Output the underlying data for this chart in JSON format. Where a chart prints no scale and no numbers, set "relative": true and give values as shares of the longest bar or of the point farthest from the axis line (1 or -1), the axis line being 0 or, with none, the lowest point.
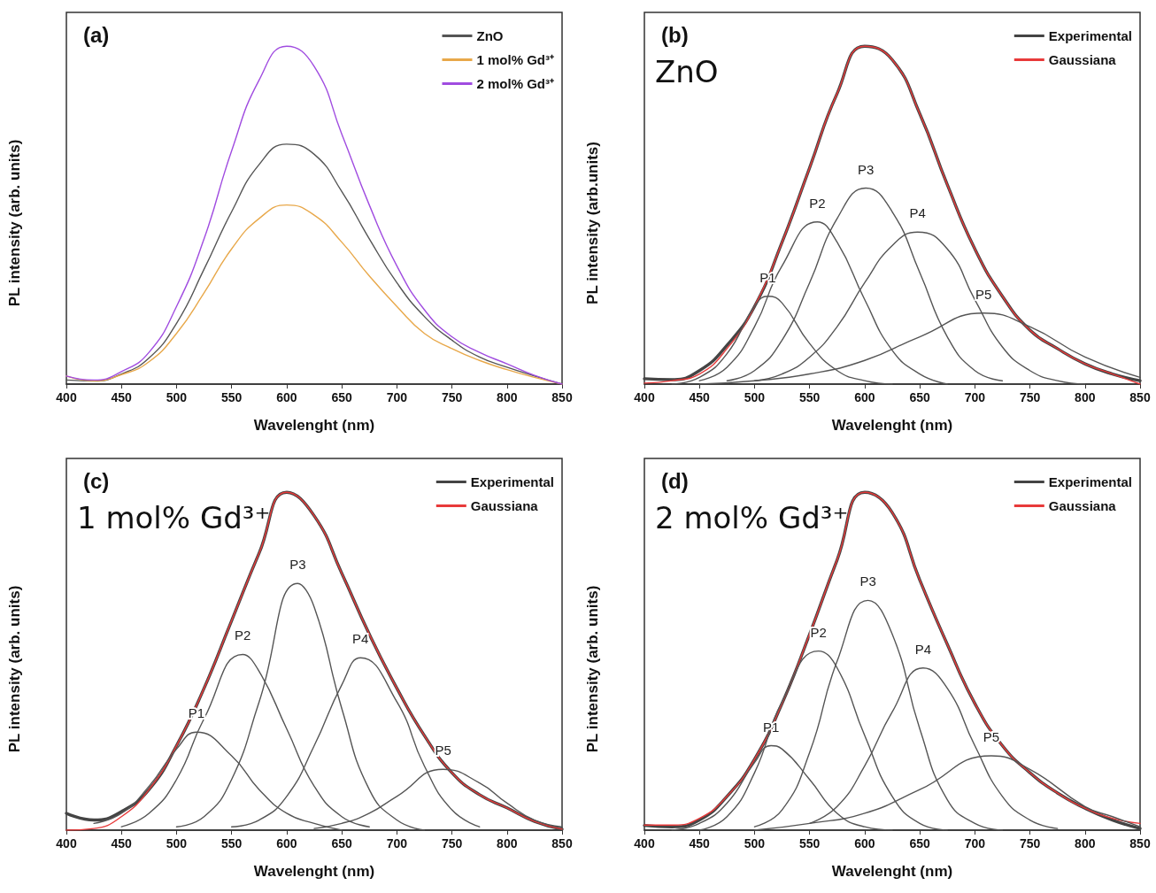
{
  "chart_data": [
    {
      "type": "line",
      "title": "(a)",
      "xlabel": "Wavelenght (nm)",
      "ylabel": "PL intensity (arb. units)",
      "relative": true,
      "marker": "none",
      "legend": "top right",
      "grid": false,
      "xlim": [
        400,
        850
      ],
      "xticks": [
        400,
        450,
        500,
        550,
        600,
        650,
        700,
        750,
        800,
        850
      ],
      "x": [
        400,
        425,
        450,
        475,
        500,
        525,
        550,
        575,
        600,
        625,
        650,
        675,
        700,
        725,
        750,
        775,
        800,
        825,
        850
      ],
      "series": [
        {
          "name": "ZnO",
          "color": "#555555",
          "values": [
            0.012,
            0.009,
            0.03,
            0.077,
            0.18,
            0.34,
            0.51,
            0.65,
            0.71,
            0.68,
            0.57,
            0.43,
            0.3,
            0.2,
            0.13,
            0.08,
            0.05,
            0.024,
            0
          ]
        },
        {
          "name": "1 mol% Gd³⁺",
          "color": "#e8a84a",
          "values": [
            0.024,
            0.01,
            0.028,
            0.066,
            0.15,
            0.27,
            0.4,
            0.49,
            0.53,
            0.5,
            0.42,
            0.32,
            0.23,
            0.15,
            0.105,
            0.07,
            0.043,
            0.02,
            0
          ]
        },
        {
          "name": "2 mol% Gd³⁺",
          "color": "#a04ce0",
          "values": [
            0.024,
            0.012,
            0.037,
            0.094,
            0.23,
            0.43,
            0.69,
            0.9,
            1,
            0.94,
            0.74,
            0.53,
            0.35,
            0.22,
            0.14,
            0.094,
            0.06,
            0.026,
            0
          ]
        }
      ]
    },
    {
      "type": "line",
      "title": "(b)",
      "xlabel": "Wavelenght (nm)",
      "ylabel": "PL intensity (arb.units)",
      "relative": true,
      "marker": "none",
      "legend": "top right",
      "grid": false,
      "xlim": [
        400,
        850
      ],
      "xticks": [
        400,
        450,
        500,
        550,
        600,
        650,
        700,
        750,
        800,
        850
      ],
      "annotations": [
        "ZnO",
        {
          "text": "P1",
          "x": 512,
          "y": 0.26
        },
        {
          "text": "P2",
          "x": 557,
          "y": 0.48
        },
        {
          "text": "P3",
          "x": 601,
          "y": 0.58
        },
        {
          "text": "P4",
          "x": 648,
          "y": 0.45
        },
        {
          "text": "P5",
          "x": 708,
          "y": 0.21
        }
      ],
      "x": [
        400,
        425,
        450,
        475,
        500,
        525,
        550,
        575,
        600,
        625,
        650,
        675,
        700,
        725,
        750,
        775,
        800,
        825,
        850
      ],
      "series": [
        {
          "name": "Experimental",
          "color": "#444444",
          "values": [
            0.016,
            0.013,
            0.04,
            0.115,
            0.23,
            0.42,
            0.64,
            0.86,
            1,
            0.96,
            0.8,
            0.59,
            0.4,
            0.26,
            0.16,
            0.105,
            0.06,
            0.03,
            0.01
          ]
        },
        {
          "name": "Gaussiana",
          "color": "#e83a3a",
          "values": [
            0.003,
            0.01,
            0.03,
            0.105,
            0.23,
            0.42,
            0.64,
            0.86,
            1,
            0.96,
            0.8,
            0.59,
            0.4,
            0.26,
            0.16,
            0.105,
            0.06,
            0.03,
            0
          ]
        },
        {
          "color": "#555555",
          "x": [
            425,
            450,
            475,
            500,
            512,
            525,
            550,
            575,
            600,
            625
          ],
          "values": [
            0,
            0.02,
            0.09,
            0.23,
            0.26,
            0.24,
            0.12,
            0.04,
            0.01,
            0
          ]
        },
        {
          "color": "#555555",
          "x": [
            450,
            475,
            500,
            525,
            557,
            575,
            600,
            625,
            650,
            675
          ],
          "values": [
            0.01,
            0.05,
            0.17,
            0.35,
            0.48,
            0.42,
            0.25,
            0.1,
            0.03,
            0
          ]
        },
        {
          "color": "#555555",
          "x": [
            475,
            500,
            525,
            550,
            575,
            601,
            625,
            650,
            675,
            700,
            725
          ],
          "values": [
            0.01,
            0.04,
            0.13,
            0.3,
            0.49,
            0.58,
            0.51,
            0.33,
            0.14,
            0.04,
            0.01
          ]
        },
        {
          "color": "#555555",
          "x": [
            500,
            525,
            550,
            575,
            600,
            625,
            648,
            675,
            700,
            725,
            750,
            775,
            800
          ],
          "values": [
            0.01,
            0.03,
            0.08,
            0.17,
            0.3,
            0.41,
            0.45,
            0.4,
            0.25,
            0.11,
            0.04,
            0.01,
            0
          ]
        },
        {
          "color": "#555555",
          "x": [
            450,
            500,
            550,
            600,
            650,
            708,
            750,
            800,
            850
          ],
          "values": [
            0,
            0.01,
            0.03,
            0.07,
            0.14,
            0.21,
            0.17,
            0.08,
            0.02
          ]
        }
      ]
    },
    {
      "type": "line",
      "title": "(c)",
      "xlabel": "Wavelenght (nm)",
      "ylabel": "PL intensity (arb. units)",
      "relative": true,
      "marker": "none",
      "legend": "top right",
      "grid": false,
      "xlim": [
        400,
        850
      ],
      "xticks": [
        400,
        450,
        500,
        550,
        600,
        650,
        700,
        750,
        800,
        850
      ],
      "annotations": [
        "1 mol% Gd³⁺",
        {
          "text": "P1",
          "x": 518,
          "y": 0.29
        },
        {
          "text": "P2",
          "x": 560,
          "y": 0.52
        },
        {
          "text": "P3",
          "x": 610,
          "y": 0.73
        },
        {
          "text": "P4",
          "x": 667,
          "y": 0.51
        },
        {
          "text": "P5",
          "x": 742,
          "y": 0.18
        }
      ],
      "x": [
        400,
        425,
        450,
        475,
        500,
        525,
        550,
        575,
        600,
        625,
        650,
        675,
        700,
        725,
        750,
        775,
        800,
        825,
        850
      ],
      "series": [
        {
          "name": "Experimental",
          "color": "#444444",
          "values": [
            0.05,
            0.03,
            0.055,
            0.12,
            0.25,
            0.42,
            0.62,
            0.82,
            1,
            0.93,
            0.76,
            0.58,
            0.42,
            0.28,
            0.17,
            0.105,
            0.066,
            0.026,
            0.003
          ]
        },
        {
          "name": "Gaussiana",
          "color": "#e83a3a",
          "values": [
            0,
            0.005,
            0.04,
            0.12,
            0.25,
            0.42,
            0.62,
            0.82,
            1,
            0.93,
            0.76,
            0.58,
            0.42,
            0.28,
            0.17,
            0.105,
            0.066,
            0.026,
            0.003
          ]
        },
        {
          "color": "#555555",
          "x": [
            425,
            450,
            475,
            500,
            518,
            550,
            575,
            600,
            625,
            650
          ],
          "values": [
            0.02,
            0.05,
            0.13,
            0.24,
            0.29,
            0.22,
            0.12,
            0.05,
            0.02,
            0
          ]
        },
        {
          "color": "#555555",
          "x": [
            450,
            475,
            500,
            525,
            560,
            575,
            600,
            625,
            650,
            675
          ],
          "values": [
            0.01,
            0.05,
            0.15,
            0.33,
            0.52,
            0.47,
            0.3,
            0.13,
            0.04,
            0.01
          ]
        },
        {
          "color": "#555555",
          "x": [
            500,
            525,
            550,
            575,
            610,
            625,
            650,
            675,
            700,
            725
          ],
          "values": [
            0.01,
            0.04,
            0.15,
            0.38,
            0.73,
            0.66,
            0.36,
            0.12,
            0.03,
            0
          ]
        },
        {
          "color": "#555555",
          "x": [
            550,
            575,
            600,
            625,
            650,
            667,
            700,
            725,
            750,
            775
          ],
          "values": [
            0.01,
            0.03,
            0.1,
            0.25,
            0.43,
            0.51,
            0.38,
            0.19,
            0.06,
            0.01
          ]
        },
        {
          "color": "#555555",
          "x": [
            625,
            650,
            675,
            700,
            742,
            775,
            800,
            825,
            850
          ],
          "values": [
            0.005,
            0.02,
            0.05,
            0.1,
            0.18,
            0.14,
            0.08,
            0.03,
            0.01
          ]
        }
      ]
    },
    {
      "type": "line",
      "title": "(d)",
      "xlabel": "Wavelenght (nm)",
      "ylabel": "PL intensity (arb. units)",
      "relative": true,
      "marker": "none",
      "legend": "top right",
      "grid": false,
      "xlim": [
        400,
        850
      ],
      "xticks": [
        400,
        450,
        500,
        550,
        600,
        650,
        700,
        750,
        800,
        850
      ],
      "annotations": [
        "2 mol% Gd³⁺",
        {
          "text": "P1",
          "x": 515,
          "y": 0.25
        },
        {
          "text": "P2",
          "x": 558,
          "y": 0.53
        },
        {
          "text": "P3",
          "x": 603,
          "y": 0.68
        },
        {
          "text": "P4",
          "x": 653,
          "y": 0.48
        },
        {
          "text": "P5",
          "x": 715,
          "y": 0.22
        }
      ],
      "x": [
        400,
        425,
        450,
        475,
        500,
        525,
        550,
        575,
        600,
        625,
        650,
        675,
        700,
        725,
        750,
        775,
        800,
        825,
        850
      ],
      "series": [
        {
          "name": "Experimental",
          "color": "#444444",
          "values": [
            0.014,
            0.01,
            0.03,
            0.1,
            0.21,
            0.375,
            0.58,
            0.8,
            1,
            0.94,
            0.74,
            0.55,
            0.375,
            0.25,
            0.17,
            0.11,
            0.065,
            0.03,
            0.005
          ]
        },
        {
          "name": "Gaussiana",
          "color": "#e83a3a",
          "values": [
            0.015,
            0.015,
            0.035,
            0.1,
            0.21,
            0.375,
            0.58,
            0.8,
            1,
            0.94,
            0.74,
            0.55,
            0.375,
            0.25,
            0.17,
            0.11,
            0.065,
            0.035,
            0.02
          ]
        },
        {
          "color": "#555555",
          "x": [
            425,
            450,
            475,
            500,
            515,
            525,
            550,
            575,
            600,
            625
          ],
          "values": [
            0,
            0.02,
            0.08,
            0.2,
            0.25,
            0.24,
            0.15,
            0.05,
            0.01,
            0
          ]
        },
        {
          "color": "#555555",
          "x": [
            450,
            475,
            500,
            525,
            558,
            575,
            600,
            625,
            650,
            675
          ],
          "values": [
            0,
            0.04,
            0.17,
            0.38,
            0.53,
            0.48,
            0.28,
            0.1,
            0.02,
            0
          ]
        },
        {
          "color": "#555555",
          "x": [
            500,
            525,
            550,
            575,
            603,
            625,
            650,
            675,
            700,
            725
          ],
          "values": [
            0.01,
            0.06,
            0.23,
            0.5,
            0.68,
            0.58,
            0.3,
            0.09,
            0.02,
            0
          ]
        },
        {
          "color": "#555555",
          "x": [
            550,
            575,
            600,
            625,
            653,
            675,
            700,
            725,
            750,
            775
          ],
          "values": [
            0.02,
            0.07,
            0.19,
            0.35,
            0.48,
            0.42,
            0.25,
            0.1,
            0.03,
            0.005
          ]
        },
        {
          "color": "#555555",
          "x": [
            500,
            550,
            600,
            650,
            715,
            750,
            800,
            825,
            850
          ],
          "values": [
            0,
            0.02,
            0.05,
            0.12,
            0.22,
            0.18,
            0.07,
            0.04,
            0.01
          ]
        }
      ]
    }
  ]
}
